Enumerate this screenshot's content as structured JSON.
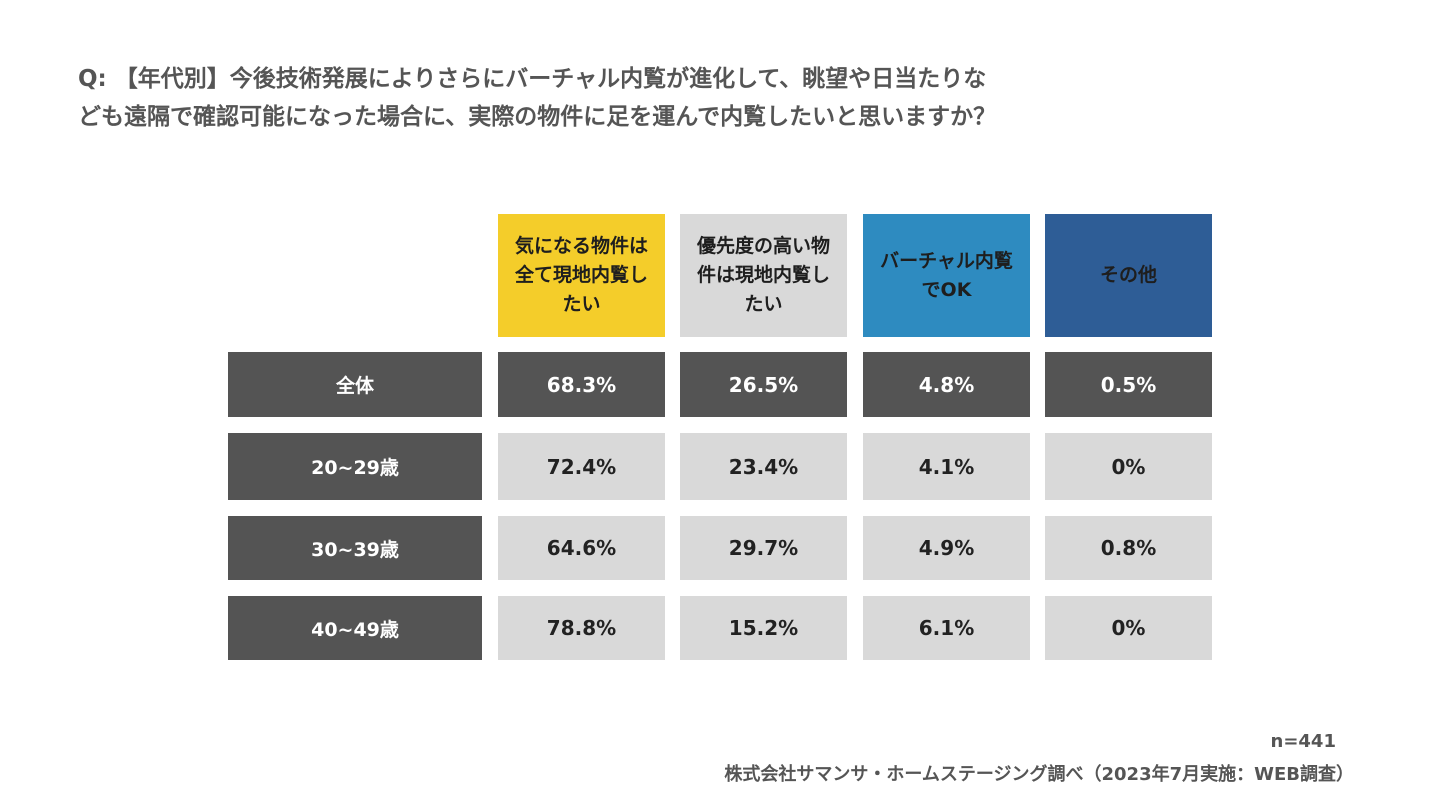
{
  "question": "Q: 【年代別】今後技術発展によりさらにバーチャル内覧が進化して、眺望や日当たりな\nども遠隔で確認可能になった場合に、実際の物件に足を運んで内覧したいと思いますか？",
  "sample_size": "n=441",
  "source": "株式会社サマンサ・ホームステージング調べ（2023年7月実施：WEB調査）",
  "chart_data": {
    "type": "table",
    "columns": [
      {
        "label": "気になる物件は全て現地内覧したい",
        "color": "#f4cd2a"
      },
      {
        "label": "優先度の高い物件は現地内覧したい",
        "color": "#d9d9d9"
      },
      {
        "label": "バーチャル内覧でOK",
        "color": "#2e8bc0"
      },
      {
        "label": "その他",
        "color": "#2e5d96"
      }
    ],
    "rows": [
      {
        "label": "全体",
        "values": [
          "68.3%",
          "26.5%",
          "4.8%",
          "0.5%"
        ]
      },
      {
        "label": "20~29歳",
        "values": [
          "72.4%",
          "23.4%",
          "4.1%",
          "0%"
        ]
      },
      {
        "label": "30~39歳",
        "values": [
          "64.6%",
          "29.7%",
          "4.9%",
          "0.8%"
        ]
      },
      {
        "label": "40~49歳",
        "values": [
          "78.8%",
          "15.2%",
          "6.1%",
          "0%"
        ]
      }
    ]
  }
}
